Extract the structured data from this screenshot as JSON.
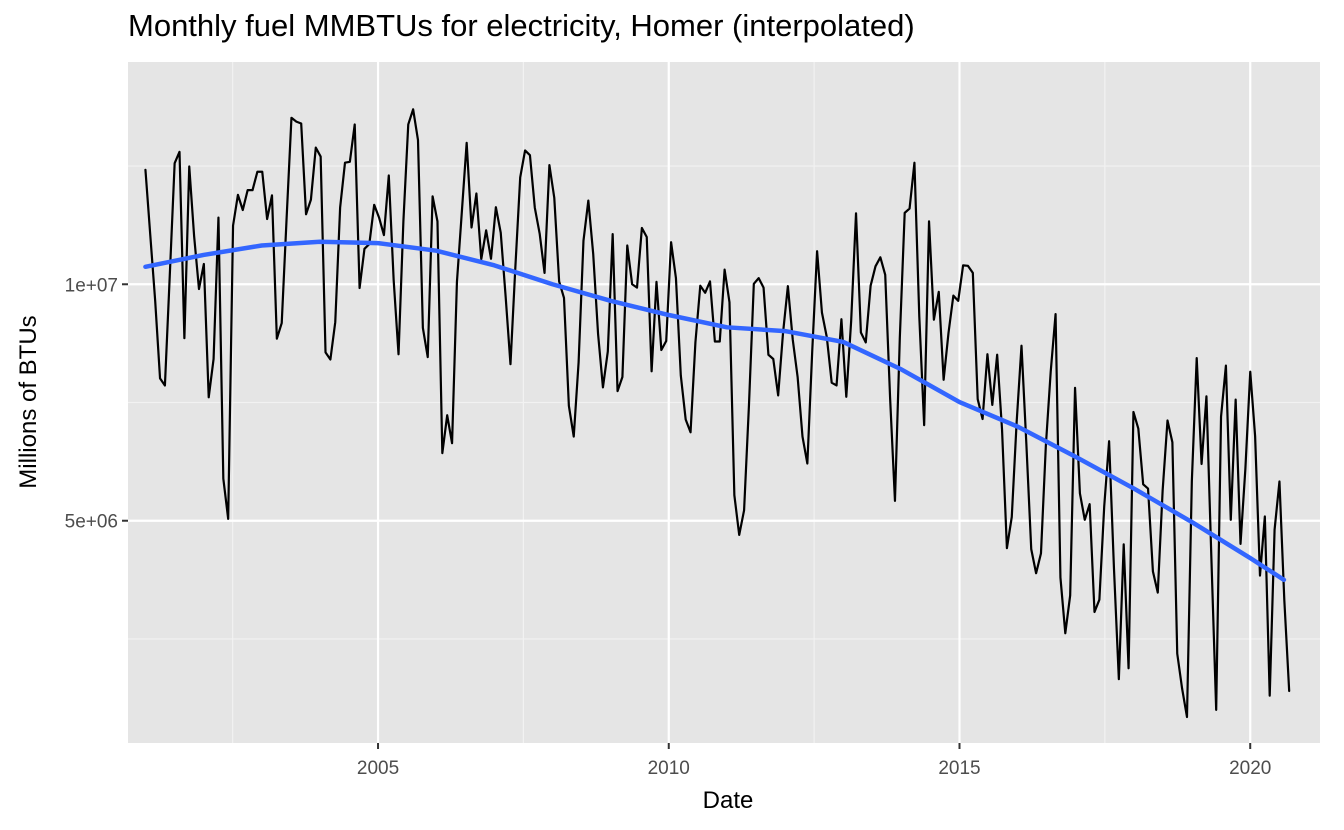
{
  "chart_data": {
    "type": "line",
    "title": "Monthly fuel MMBTUs for electricity, Homer (interpolated)",
    "xlabel": "Date",
    "ylabel": "Millions of BTUs",
    "x_ticks": [
      {
        "label": "2005",
        "value": 2005
      },
      {
        "label": "2010",
        "value": 2010
      },
      {
        "label": "2015",
        "value": 2015
      },
      {
        "label": "2020",
        "value": 2020
      }
    ],
    "y_ticks": [
      {
        "label": "5e+06",
        "value": 5000000
      },
      {
        "label": "1e+07",
        "value": 10000000
      }
    ],
    "xlim": [
      2000.7,
      2021.2
    ],
    "ylim": [
      300000,
      14700000
    ],
    "grid": true,
    "panel_background": "#e5e5e5",
    "series": [
      {
        "kind": "monthly",
        "color": "#000000",
        "x_start": 2001.0,
        "x_step": 0.08333,
        "values": [
          12420000,
          11030000,
          9650000,
          8010000,
          7860000,
          10190000,
          12560000,
          12800000,
          8860000,
          12490000,
          11020000,
          9900000,
          10430000,
          7610000,
          8420000,
          11410000,
          5890000,
          5040000,
          11240000,
          11890000,
          11570000,
          11990000,
          11990000,
          12380000,
          12380000,
          11380000,
          11880000,
          8850000,
          9180000,
          11390000,
          13520000,
          13440000,
          13400000,
          11480000,
          11790000,
          12890000,
          12700000,
          8560000,
          8410000,
          9200000,
          11620000,
          12570000,
          12590000,
          13380000,
          9920000,
          10750000,
          10850000,
          11680000,
          11410000,
          11040000,
          12300000,
          10090000,
          8520000,
          11330000,
          13380000,
          13700000,
          13050000,
          9080000,
          8460000,
          11860000,
          11330000,
          6430000,
          7230000,
          6640000,
          10050000,
          11520000,
          12990000,
          11200000,
          11920000,
          10530000,
          11140000,
          10540000,
          11630000,
          11090000,
          9750000,
          8310000,
          10350000,
          12260000,
          12830000,
          12730000,
          11620000,
          11070000,
          10240000,
          12520000,
          11830000,
          10060000,
          9710000,
          7430000,
          6780000,
          8350000,
          10920000,
          11770000,
          10640000,
          8950000,
          7820000,
          8580000,
          11060000,
          7740000,
          8040000,
          10820000,
          10000000,
          9930000,
          11190000,
          11000000,
          8160000,
          10050000,
          8610000,
          8800000,
          10890000,
          10130000,
          8070000,
          7140000,
          6870000,
          8770000,
          9970000,
          9820000,
          10060000,
          8790000,
          8790000,
          10310000,
          9620000,
          5540000,
          4700000,
          5220000,
          7440000,
          10010000,
          10130000,
          9930000,
          8510000,
          8420000,
          7650000,
          8970000,
          9960000,
          8830000,
          8040000,
          6780000,
          6210000,
          8580000,
          10700000,
          9400000,
          8880000,
          7920000,
          7860000,
          9260000,
          7620000,
          9220000,
          11500000,
          8980000,
          8770000,
          9970000,
          10380000,
          10570000,
          10200000,
          7600000,
          5420000,
          8870000,
          11510000,
          11600000,
          12570000,
          9320000,
          7020000,
          11330000,
          9250000,
          9840000,
          7980000,
          8970000,
          9760000,
          9650000,
          10400000,
          10390000,
          10240000,
          7570000,
          7150000,
          8520000,
          7450000,
          8510000,
          6930000,
          4420000,
          5080000,
          7080000,
          8700000,
          6620000,
          4400000,
          3890000,
          4310000,
          6580000,
          8150000,
          9370000,
          3800000,
          2620000,
          3420000,
          7810000,
          5580000,
          5020000,
          5350000,
          3070000,
          3330000,
          5310000,
          6680000,
          3990000,
          1650000,
          4500000,
          1880000,
          7300000,
          6950000,
          5770000,
          5680000,
          3930000,
          3480000,
          5640000,
          7120000,
          6660000,
          2190000,
          1450000,
          850000,
          5840000,
          8440000,
          6200000,
          7630000,
          4260000,
          1000000,
          7200000,
          8280000,
          5020000,
          7560000,
          4510000,
          6100000,
          8150000,
          6790000,
          3840000,
          5090000,
          1300000,
          4810000,
          5830000,
          3320000,
          1400000
        ],
        "x_end": 2020.67
      },
      {
        "kind": "smooth",
        "color": "#3366ff",
        "x": [
          2001.0,
          2002.0,
          2003.0,
          2004.0,
          2005.0,
          2006.0,
          2007.0,
          2008.0,
          2009.0,
          2010.0,
          2011.0,
          2012.0,
          2013.0,
          2014.0,
          2015.0,
          2016.0,
          2017.0,
          2018.0,
          2019.0,
          2020.0,
          2020.58
        ],
        "values": [
          10370000,
          10620000,
          10820000,
          10900000,
          10870000,
          10710000,
          10400000,
          10000000,
          9650000,
          9350000,
          9090000,
          9010000,
          8780000,
          8200000,
          7510000,
          6990000,
          6350000,
          5680000,
          4970000,
          4210000,
          3750000
        ]
      }
    ]
  }
}
